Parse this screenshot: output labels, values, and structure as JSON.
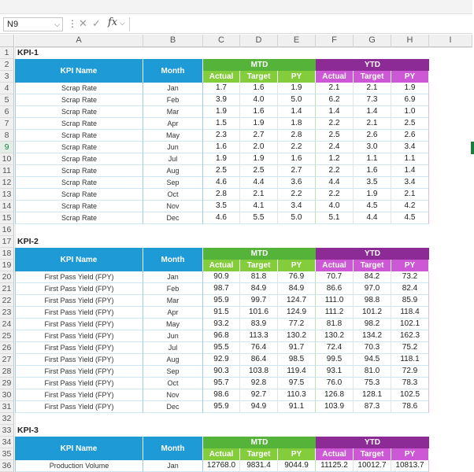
{
  "formula_bar": {
    "name_box": "N9",
    "fx_label": "fx",
    "content": ""
  },
  "columns": [
    "A",
    "B",
    "C",
    "D",
    "E",
    "F",
    "G",
    "H",
    "I"
  ],
  "rows": [
    "1",
    "2",
    "3",
    "4",
    "5",
    "6",
    "7",
    "8",
    "9",
    "10",
    "11",
    "12",
    "13",
    "14",
    "15",
    "16",
    "17",
    "18",
    "19",
    "20",
    "21",
    "22",
    "23",
    "24",
    "25",
    "26",
    "27",
    "28",
    "29",
    "30",
    "31",
    "32",
    "33",
    "34",
    "35",
    "36"
  ],
  "selected_row": "9",
  "headers": {
    "kpi_name": "KPI Name",
    "month": "Month",
    "mtd": "MTD",
    "ytd": "YTD",
    "actual": "Actual",
    "target": "Target",
    "py": "PY"
  },
  "kpis": [
    {
      "title": "KPI-1",
      "rows": [
        {
          "name": "Scrap Rate",
          "month": "Jan",
          "mtd": [
            "1.7",
            "1.6",
            "1.9"
          ],
          "ytd": [
            "2.1",
            "2.1",
            "1.9"
          ]
        },
        {
          "name": "Scrap Rate",
          "month": "Feb",
          "mtd": [
            "3.9",
            "4.0",
            "5.0"
          ],
          "ytd": [
            "6.2",
            "7.3",
            "6.9"
          ]
        },
        {
          "name": "Scrap Rate",
          "month": "Mar",
          "mtd": [
            "1.9",
            "1.6",
            "1.4"
          ],
          "ytd": [
            "1.4",
            "1.4",
            "1.0"
          ]
        },
        {
          "name": "Scrap Rate",
          "month": "Apr",
          "mtd": [
            "1.5",
            "1.9",
            "1.8"
          ],
          "ytd": [
            "2.2",
            "2.1",
            "2.5"
          ]
        },
        {
          "name": "Scrap Rate",
          "month": "May",
          "mtd": [
            "2.3",
            "2.7",
            "2.8"
          ],
          "ytd": [
            "2.5",
            "2.6",
            "2.6"
          ]
        },
        {
          "name": "Scrap Rate",
          "month": "Jun",
          "mtd": [
            "1.6",
            "2.0",
            "2.2"
          ],
          "ytd": [
            "2.4",
            "3.0",
            "3.4"
          ]
        },
        {
          "name": "Scrap Rate",
          "month": "Jul",
          "mtd": [
            "1.9",
            "1.9",
            "1.6"
          ],
          "ytd": [
            "1.2",
            "1.1",
            "1.1"
          ]
        },
        {
          "name": "Scrap Rate",
          "month": "Aug",
          "mtd": [
            "2.5",
            "2.5",
            "2.7"
          ],
          "ytd": [
            "2.2",
            "1.6",
            "1.4"
          ]
        },
        {
          "name": "Scrap Rate",
          "month": "Sep",
          "mtd": [
            "4.6",
            "4.4",
            "3.6"
          ],
          "ytd": [
            "4.4",
            "3.5",
            "3.4"
          ]
        },
        {
          "name": "Scrap Rate",
          "month": "Oct",
          "mtd": [
            "2.8",
            "2.1",
            "2.2"
          ],
          "ytd": [
            "2.2",
            "1.9",
            "2.1"
          ]
        },
        {
          "name": "Scrap Rate",
          "month": "Nov",
          "mtd": [
            "3.5",
            "4.1",
            "3.4"
          ],
          "ytd": [
            "4.0",
            "4.5",
            "4.2"
          ]
        },
        {
          "name": "Scrap Rate",
          "month": "Dec",
          "mtd": [
            "4.6",
            "5.5",
            "5.0"
          ],
          "ytd": [
            "5.1",
            "4.4",
            "4.5"
          ]
        }
      ]
    },
    {
      "title": "KPI-2",
      "rows": [
        {
          "name": "First Pass Yield (FPY)",
          "month": "Jan",
          "mtd": [
            "90.9",
            "81.8",
            "76.9"
          ],
          "ytd": [
            "70.7",
            "84.2",
            "73.2"
          ]
        },
        {
          "name": "First Pass Yield (FPY)",
          "month": "Feb",
          "mtd": [
            "98.7",
            "84.9",
            "84.9"
          ],
          "ytd": [
            "86.6",
            "97.0",
            "82.4"
          ]
        },
        {
          "name": "First Pass Yield (FPY)",
          "month": "Mar",
          "mtd": [
            "95.9",
            "99.7",
            "124.7"
          ],
          "ytd": [
            "111.0",
            "98.8",
            "85.9"
          ]
        },
        {
          "name": "First Pass Yield (FPY)",
          "month": "Apr",
          "mtd": [
            "91.5",
            "101.6",
            "124.9"
          ],
          "ytd": [
            "111.2",
            "101.2",
            "118.4"
          ]
        },
        {
          "name": "First Pass Yield (FPY)",
          "month": "May",
          "mtd": [
            "93.2",
            "83.9",
            "77.2"
          ],
          "ytd": [
            "81.8",
            "98.2",
            "102.1"
          ]
        },
        {
          "name": "First Pass Yield (FPY)",
          "month": "Jun",
          "mtd": [
            "96.8",
            "113.3",
            "130.2"
          ],
          "ytd": [
            "130.2",
            "134.2",
            "162.3"
          ]
        },
        {
          "name": "First Pass Yield (FPY)",
          "month": "Jul",
          "mtd": [
            "95.5",
            "76.4",
            "91.7"
          ],
          "ytd": [
            "72.4",
            "70.3",
            "75.2"
          ]
        },
        {
          "name": "First Pass Yield (FPY)",
          "month": "Aug",
          "mtd": [
            "92.9",
            "86.4",
            "98.5"
          ],
          "ytd": [
            "99.5",
            "94.5",
            "118.1"
          ]
        },
        {
          "name": "First Pass Yield (FPY)",
          "month": "Sep",
          "mtd": [
            "90.3",
            "103.8",
            "119.4"
          ],
          "ytd": [
            "93.1",
            "81.0",
            "72.9"
          ]
        },
        {
          "name": "First Pass Yield (FPY)",
          "month": "Oct",
          "mtd": [
            "95.7",
            "92.8",
            "97.5"
          ],
          "ytd": [
            "76.0",
            "75.3",
            "78.3"
          ]
        },
        {
          "name": "First Pass Yield (FPY)",
          "month": "Nov",
          "mtd": [
            "98.6",
            "92.7",
            "110.3"
          ],
          "ytd": [
            "126.8",
            "128.1",
            "102.5"
          ]
        },
        {
          "name": "First Pass Yield (FPY)",
          "month": "Dec",
          "mtd": [
            "95.9",
            "94.9",
            "91.1"
          ],
          "ytd": [
            "103.9",
            "87.3",
            "78.6"
          ]
        }
      ]
    },
    {
      "title": "KPI-3",
      "rows": [
        {
          "name": "Production Volume",
          "month": "Jan",
          "mtd": [
            "12768.0",
            "9831.4",
            "9044.9"
          ],
          "ytd": [
            "11125.2",
            "10012.7",
            "10813.7"
          ]
        }
      ]
    }
  ],
  "colors": {
    "header_blue": "#1e9ad6",
    "mtd_dark": "#55b33a",
    "mtd_light": "#83cc3b",
    "ytd_dark": "#8c2a96",
    "ytd_light": "#cc58d6",
    "selection": "#1a7c3e"
  }
}
